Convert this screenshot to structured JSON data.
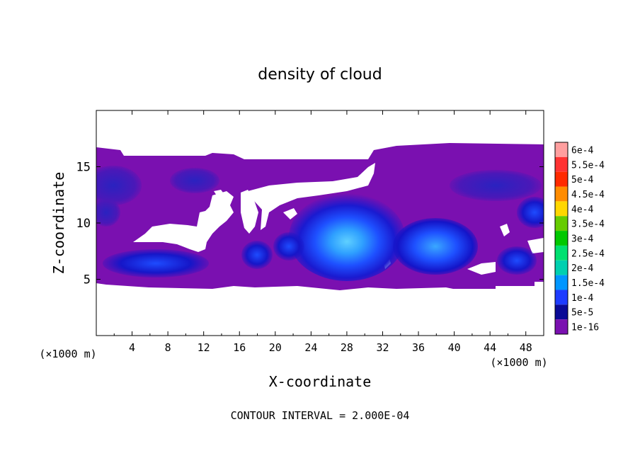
{
  "chart_data": {
    "type": "heatmap",
    "title": "density of cloud",
    "xlabel": "X-coordinate",
    "ylabel": "Z-coordinate",
    "x_unit_left": "(×1000 m)",
    "x_unit_right": "(×1000 m)",
    "xlim": [
      0,
      50
    ],
    "ylim": [
      0,
      20
    ],
    "x_ticks": [
      "4",
      "8",
      "12",
      "16",
      "20",
      "24",
      "28",
      "32",
      "36",
      "40",
      "44",
      "48"
    ],
    "y_ticks": [
      "5",
      "10",
      "15"
    ],
    "footer": "CONTOUR INTERVAL = 2.000E-04",
    "colorbar": {
      "labels": [
        "6e-4",
        "5.5e-4",
        "5e-4",
        "4.5e-4",
        "4e-4",
        "3.5e-4",
        "3e-4",
        "2.5e-4",
        "2e-4",
        "1.5e-4",
        "1e-4",
        "5e-5",
        "1e-16"
      ],
      "colors": [
        "#ff9f9f",
        "#ff3333",
        "#ff2a00",
        "#ff8c00",
        "#ffd700",
        "#66cc00",
        "#00c800",
        "#00e070",
        "#00d0b0",
        "#0096ff",
        "#1e3cff",
        "#0a0a96",
        "#7a10b0"
      ]
    },
    "regions": {
      "base_color": "#7a10b0",
      "blue_cores": [
        {
          "x": 28,
          "z": 8.5,
          "level": "2e-4"
        },
        {
          "x": 37,
          "z": 7.5,
          "level": "1.5e-4"
        },
        {
          "x": 7,
          "z": 6.2,
          "level": "1e-4"
        },
        {
          "x": 47,
          "z": 6.5,
          "level": "1e-4"
        }
      ]
    }
  }
}
